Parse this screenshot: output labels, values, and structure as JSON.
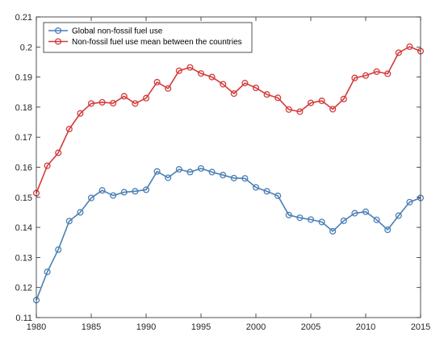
{
  "chart_data": {
    "type": "line",
    "title": "",
    "xlabel": "",
    "ylabel": "",
    "xlim": [
      1980,
      2015
    ],
    "ylim": [
      0.11,
      0.21
    ],
    "xticks": [
      1980,
      1985,
      1990,
      1995,
      2000,
      2005,
      2010,
      2015
    ],
    "yticks": [
      0.11,
      0.12,
      0.13,
      0.14,
      0.15,
      0.16,
      0.17,
      0.18,
      0.19,
      0.2,
      0.21
    ],
    "xtick_labels": [
      "1980",
      "1985",
      "1990",
      "1995",
      "2000",
      "2005",
      "2010",
      "2015"
    ],
    "ytick_labels": [
      "0.11",
      "0.12",
      "0.13",
      "0.14",
      "0.15",
      "0.16",
      "0.17",
      "0.18",
      "0.19",
      "0.2",
      "0.21"
    ],
    "grid": false,
    "legend_position": "top-left",
    "x": [
      1980,
      1981,
      1982,
      1983,
      1984,
      1985,
      1986,
      1987,
      1988,
      1989,
      1990,
      1991,
      1992,
      1993,
      1994,
      1995,
      1996,
      1997,
      1998,
      1999,
      2000,
      2001,
      2002,
      2003,
      2004,
      2005,
      2006,
      2007,
      2008,
      2009,
      2010,
      2011,
      2012,
      2013,
      2014,
      2015
    ],
    "series": [
      {
        "name": "Global non-fossil fuel use",
        "color": "#4a7fb5",
        "marker": "circle",
        "values": [
          0.1158,
          0.1252,
          0.1326,
          0.1421,
          0.145,
          0.1498,
          0.1523,
          0.1506,
          0.1517,
          0.152,
          0.1525,
          0.1586,
          0.1565,
          0.1593,
          0.1584,
          0.1596,
          0.1584,
          0.1574,
          0.1564,
          0.1563,
          0.1533,
          0.152,
          0.1505,
          0.1441,
          0.1432,
          0.1426,
          0.1418,
          0.1387,
          0.1422,
          0.1447,
          0.1452,
          0.1425,
          0.1392,
          0.1439,
          0.1484,
          0.1498
        ]
      },
      {
        "name": "Non-fossil fuel use mean between the countries",
        "color": "#d43a3a",
        "marker": "circle",
        "values": [
          0.1514,
          0.1605,
          0.1648,
          0.1727,
          0.1779,
          0.1812,
          0.1816,
          0.1813,
          0.1836,
          0.1812,
          0.183,
          0.1883,
          0.1862,
          0.1921,
          0.1932,
          0.1912,
          0.19,
          0.1876,
          0.1845,
          0.188,
          0.1864,
          0.1842,
          0.1831,
          0.1792,
          0.1785,
          0.1814,
          0.1821,
          0.1793,
          0.1827,
          0.1897,
          0.1905,
          0.1918,
          0.1911,
          0.1981,
          0.2001,
          0.1986
        ]
      }
    ]
  }
}
